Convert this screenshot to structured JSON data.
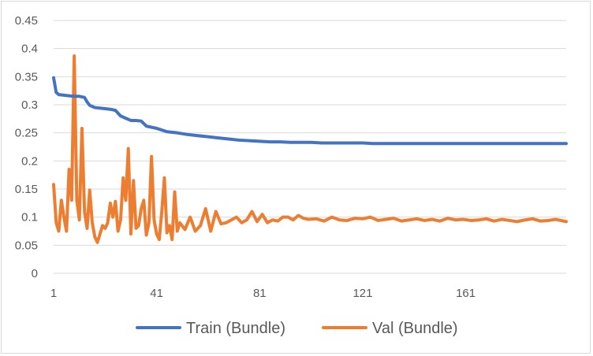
{
  "chart_data": {
    "type": "line",
    "title": "",
    "xlabel": "",
    "ylabel": "",
    "xlim": [
      1,
      200
    ],
    "ylim": [
      0,
      0.45
    ],
    "y_ticks": [
      "0",
      "0.05",
      "0.1",
      "0.15",
      "0.2",
      "0.25",
      "0.3",
      "0.35",
      "0.4",
      "0.45"
    ],
    "x_ticks": [
      "1",
      "41",
      "81",
      "121",
      "161"
    ],
    "grid": "horizontal",
    "legend": "bottom",
    "series": [
      {
        "name": "Train (Bundle)",
        "color": "#4472c4",
        "x": [
          1,
          2,
          3,
          5,
          7,
          9,
          11,
          13,
          14,
          15,
          16,
          17,
          19,
          21,
          23,
          25,
          27,
          29,
          31,
          33,
          35,
          37,
          41,
          45,
          49,
          53,
          57,
          61,
          65,
          69,
          73,
          77,
          81,
          85,
          89,
          93,
          97,
          101,
          105,
          109,
          113,
          117,
          121,
          125,
          129,
          133,
          137,
          141,
          145,
          149,
          153,
          157,
          161,
          165,
          169,
          173,
          177,
          181,
          185,
          189,
          193,
          197,
          200
        ],
        "y": [
          0.348,
          0.322,
          0.318,
          0.317,
          0.316,
          0.315,
          0.315,
          0.313,
          0.305,
          0.299,
          0.297,
          0.295,
          0.294,
          0.293,
          0.292,
          0.29,
          0.28,
          0.276,
          0.272,
          0.272,
          0.271,
          0.262,
          0.258,
          0.252,
          0.25,
          0.247,
          0.245,
          0.243,
          0.241,
          0.239,
          0.237,
          0.236,
          0.235,
          0.234,
          0.234,
          0.233,
          0.233,
          0.233,
          0.232,
          0.232,
          0.232,
          0.232,
          0.232,
          0.231,
          0.231,
          0.231,
          0.231,
          0.231,
          0.231,
          0.231,
          0.231,
          0.231,
          0.231,
          0.231,
          0.231,
          0.231,
          0.231,
          0.231,
          0.231,
          0.231,
          0.231,
          0.231,
          0.231
        ]
      },
      {
        "name": "Val (Bundle)",
        "color": "#ed7d31",
        "x": [
          1,
          2,
          3,
          4,
          5,
          6,
          7,
          8,
          9,
          10,
          11,
          12,
          13,
          14,
          15,
          16,
          17,
          18,
          19,
          20,
          21,
          22,
          23,
          24,
          25,
          26,
          27,
          28,
          29,
          30,
          31,
          32,
          33,
          34,
          35,
          36,
          37,
          38,
          39,
          40,
          41,
          42,
          43,
          44,
          45,
          46,
          47,
          48,
          49,
          50,
          52,
          54,
          56,
          58,
          60,
          62,
          64,
          66,
          68,
          70,
          72,
          74,
          76,
          78,
          80,
          82,
          84,
          86,
          88,
          90,
          92,
          94,
          96,
          98,
          100,
          103,
          106,
          109,
          112,
          115,
          118,
          121,
          124,
          127,
          130,
          133,
          136,
          139,
          142,
          145,
          148,
          151,
          154,
          157,
          160,
          163,
          166,
          169,
          172,
          175,
          178,
          181,
          184,
          187,
          190,
          193,
          196,
          200
        ],
        "y": [
          0.158,
          0.09,
          0.075,
          0.13,
          0.1,
          0.075,
          0.185,
          0.13,
          0.387,
          0.13,
          0.095,
          0.258,
          0.11,
          0.08,
          0.148,
          0.09,
          0.065,
          0.055,
          0.07,
          0.085,
          0.08,
          0.09,
          0.125,
          0.1,
          0.128,
          0.075,
          0.095,
          0.17,
          0.13,
          0.222,
          0.07,
          0.165,
          0.08,
          0.085,
          0.115,
          0.13,
          0.068,
          0.09,
          0.208,
          0.095,
          0.07,
          0.06,
          0.11,
          0.17,
          0.072,
          0.085,
          0.06,
          0.145,
          0.075,
          0.09,
          0.078,
          0.1,
          0.075,
          0.085,
          0.115,
          0.075,
          0.11,
          0.088,
          0.09,
          0.095,
          0.1,
          0.09,
          0.095,
          0.11,
          0.092,
          0.105,
          0.09,
          0.095,
          0.093,
          0.1,
          0.1,
          0.095,
          0.103,
          0.098,
          0.096,
          0.097,
          0.093,
          0.1,
          0.095,
          0.094,
          0.098,
          0.097,
          0.1,
          0.094,
          0.096,
          0.098,
          0.093,
          0.095,
          0.097,
          0.094,
          0.096,
          0.093,
          0.098,
          0.095,
          0.096,
          0.094,
          0.095,
          0.097,
          0.093,
          0.096,
          0.094,
          0.092,
          0.095,
          0.097,
          0.093,
          0.094,
          0.096,
          0.092
        ]
      }
    ]
  }
}
